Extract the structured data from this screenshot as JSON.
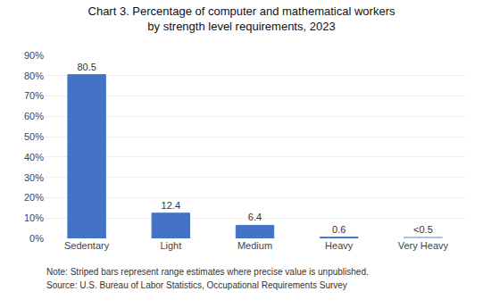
{
  "chart_data": {
    "type": "bar",
    "title": "Chart 3. Percentage of computer and mathematical workers\nby strength level requirements, 2023",
    "categories": [
      "Sedentary",
      "Light",
      "Medium",
      "Heavy",
      "Very Heavy"
    ],
    "series": [
      {
        "color": "#4472C4",
        "values": [
          80.5,
          12.4,
          6.4,
          0.6,
          null
        ],
        "value_labels": [
          "80.5",
          "12.4",
          "6.4",
          "0.6",
          null
        ]
      },
      {
        "color": "#7BA7D4",
        "marker": "dotted",
        "values": [
          null,
          null,
          null,
          null,
          0.5
        ],
        "value_labels": [
          null,
          null,
          null,
          null,
          "<0.5"
        ]
      }
    ],
    "data_labels": true,
    "ylim": [
      0,
      90
    ],
    "yticks": [
      {
        "value": 0,
        "label": "0%"
      },
      {
        "value": 10,
        "label": "10%"
      },
      {
        "value": 20,
        "label": "20%"
      },
      {
        "value": 30,
        "label": "30%"
      },
      {
        "value": 40,
        "label": "40%"
      },
      {
        "value": 50,
        "label": "50%"
      },
      {
        "value": 60,
        "label": "60%"
      },
      {
        "value": 70,
        "label": "70%"
      },
      {
        "value": 80,
        "label": "80%"
      },
      {
        "value": 90,
        "label": "90%"
      }
    ],
    "grid": true,
    "annotations": [
      "Note: Striped bars represent range estimates where precise value is unpublished.",
      "Source: U.S. Bureau of Labor Statistics, Occupational Requirements Survey"
    ]
  }
}
